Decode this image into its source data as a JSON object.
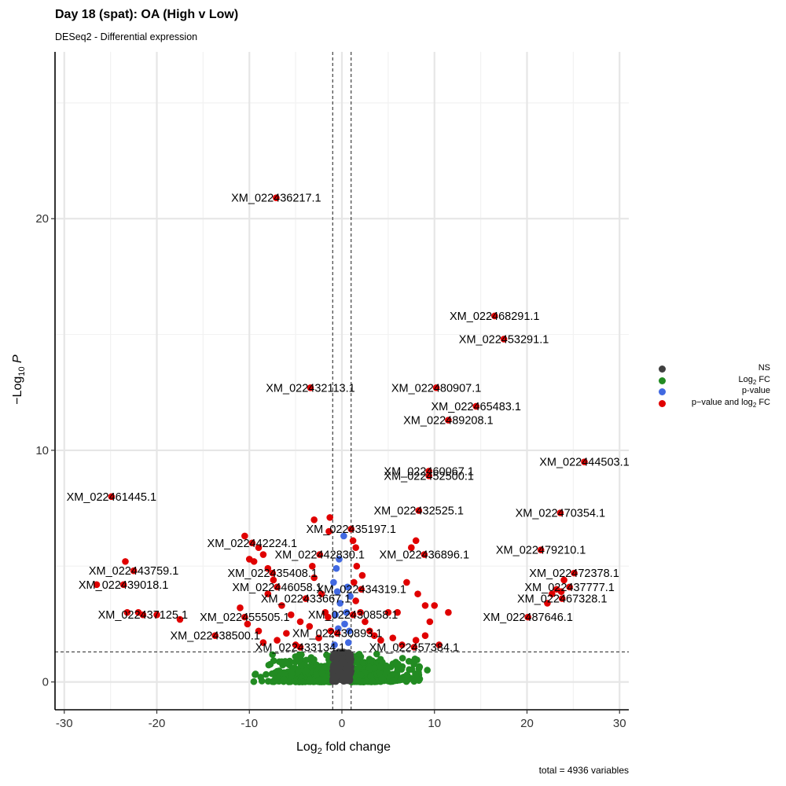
{
  "chart_data": {
    "type": "scatter",
    "title": "Day 18 (spat): OA (High v Low)",
    "subtitle": "DESeq2 - Differential expression",
    "xlabel": "Log2 fold change",
    "ylabel": "−Log10 P",
    "caption": "total = 4936 variables",
    "xlim": [
      -31,
      31
    ],
    "ylim": [
      -1.2,
      27.2
    ],
    "xticks": [
      -30,
      -20,
      -10,
      0,
      10,
      20,
      30
    ],
    "yticks": [
      0,
      10,
      20
    ],
    "grid": true,
    "cutoffs": {
      "log2fc": [
        -1,
        1
      ],
      "neglog10p": 1.3
    },
    "legend": {
      "placement": "right",
      "items": [
        {
          "label": "NS",
          "color": "#404040"
        },
        {
          "label": "Log2 FC",
          "color": "#228b22"
        },
        {
          "label": "p-value",
          "color": "#4169e1"
        },
        {
          "label": "p−value and log2 FC",
          "color": "#e00000"
        }
      ]
    },
    "labeled_points": [
      {
        "label": "XM_022436217.1",
        "x": -7.1,
        "y": 20.9
      },
      {
        "label": "XM_022468291.1",
        "x": 16.5,
        "y": 15.8
      },
      {
        "label": "XM_022453291.1",
        "x": 17.5,
        "y": 14.8
      },
      {
        "label": "XM_022432113.1",
        "x": -3.4,
        "y": 12.7
      },
      {
        "label": "XM_022480907.1",
        "x": 10.2,
        "y": 12.7
      },
      {
        "label": "XM_022465483.1",
        "x": 14.5,
        "y": 11.9
      },
      {
        "label": "XM_022489208.1",
        "x": 11.5,
        "y": 11.3
      },
      {
        "label": "XM_022444503.1",
        "x": 26.2,
        "y": 9.5
      },
      {
        "label": "XM_022460067.1",
        "x": 9.4,
        "y": 9.1
      },
      {
        "label": "XM_022452500.1",
        "x": 9.4,
        "y": 8.9
      },
      {
        "label": "XM_022461445.1",
        "x": -24.9,
        "y": 8.0
      },
      {
        "label": "XM_022432525.1",
        "x": 8.3,
        "y": 7.4
      },
      {
        "label": "XM_022470354.1",
        "x": 23.6,
        "y": 7.3
      },
      {
        "label": "XM_022435197.1",
        "x": 1.0,
        "y": 6.6
      },
      {
        "label": "XM_022442224.1",
        "x": -9.7,
        "y": 6.0
      },
      {
        "label": "XM_022479210.1",
        "x": 21.5,
        "y": 5.7
      },
      {
        "label": "XM_022436896.1",
        "x": 8.9,
        "y": 5.5
      },
      {
        "label": "XM_022442830.1",
        "x": -2.4,
        "y": 5.5
      },
      {
        "label": "XM_022443759.1",
        "x": -22.5,
        "y": 4.8
      },
      {
        "label": "XM_022435408.1",
        "x": -7.5,
        "y": 4.7
      },
      {
        "label": "XM_022472378.1",
        "x": 25.1,
        "y": 4.7
      },
      {
        "label": "XM_022439018.1",
        "x": -23.6,
        "y": 4.2
      },
      {
        "label": "XM_022446058.1",
        "x": -7.0,
        "y": 4.1
      },
      {
        "label": "XM_022434319.1",
        "x": 2.1,
        "y": 4.0
      },
      {
        "label": "XM_022437777.1",
        "x": 24.6,
        "y": 4.1
      },
      {
        "label": "XM_022433667.1",
        "x": -3.9,
        "y": 3.6
      },
      {
        "label": "XM_022467328.1",
        "x": 23.8,
        "y": 3.6
      },
      {
        "label": "XM_022437125.1",
        "x": -21.5,
        "y": 2.9
      },
      {
        "label": "XM_022455505.1",
        "x": -10.5,
        "y": 2.8
      },
      {
        "label": "XM_022430858.1",
        "x": 1.2,
        "y": 2.9
      },
      {
        "label": "XM_022487646.1",
        "x": 20.1,
        "y": 2.8
      },
      {
        "label": "XM_022438500.1",
        "x": -13.7,
        "y": 2.0
      },
      {
        "label": "XM_022430893.1",
        "x": -0.5,
        "y": 2.1
      },
      {
        "label": "XM_022433134.1",
        "x": -4.5,
        "y": 1.5
      },
      {
        "label": "XM_022457384.1",
        "x": 7.8,
        "y": 1.5
      }
    ],
    "extra_significant_points": [
      {
        "x": -26.5,
        "y": 4.2
      },
      {
        "x": -23.2,
        "y": 3.0
      },
      {
        "x": -22.0,
        "y": 3.0
      },
      {
        "x": -20.0,
        "y": 2.9
      },
      {
        "x": -17.5,
        "y": 2.7
      },
      {
        "x": -23.4,
        "y": 5.2
      },
      {
        "x": -10.5,
        "y": 6.3
      },
      {
        "x": -9.5,
        "y": 5.2
      },
      {
        "x": -10.0,
        "y": 5.3
      },
      {
        "x": -9.0,
        "y": 5.8
      },
      {
        "x": -8.5,
        "y": 5.5
      },
      {
        "x": -8.0,
        "y": 4.9
      },
      {
        "x": -11.0,
        "y": 3.2
      },
      {
        "x": -10.2,
        "y": 2.5
      },
      {
        "x": -9.0,
        "y": 2.2
      },
      {
        "x": -8.0,
        "y": 3.8
      },
      {
        "x": -7.4,
        "y": 4.4
      },
      {
        "x": -6.5,
        "y": 3.3
      },
      {
        "x": -5.5,
        "y": 2.9
      },
      {
        "x": -4.5,
        "y": 2.6
      },
      {
        "x": -3.5,
        "y": 2.4
      },
      {
        "x": -3.2,
        "y": 5.0
      },
      {
        "x": -3.0,
        "y": 7.0
      },
      {
        "x": -3.0,
        "y": 4.5
      },
      {
        "x": -2.2,
        "y": 3.8
      },
      {
        "x": -1.8,
        "y": 3.0
      },
      {
        "x": -1.5,
        "y": 2.8
      },
      {
        "x": -1.2,
        "y": 2.2
      },
      {
        "x": -1.3,
        "y": 7.1
      },
      {
        "x": -1.4,
        "y": 6.5
      },
      {
        "x": -6.0,
        "y": 2.1
      },
      {
        "x": -7.0,
        "y": 1.8
      },
      {
        "x": -5.0,
        "y": 1.6
      },
      {
        "x": -8.5,
        "y": 1.7
      },
      {
        "x": -2.5,
        "y": 1.9
      },
      {
        "x": 1.5,
        "y": 5.8
      },
      {
        "x": 1.6,
        "y": 5.0
      },
      {
        "x": 1.3,
        "y": 4.3
      },
      {
        "x": 1.5,
        "y": 3.5
      },
      {
        "x": 2.0,
        "y": 3.0
      },
      {
        "x": 2.5,
        "y": 2.6
      },
      {
        "x": 3.0,
        "y": 2.2
      },
      {
        "x": 3.5,
        "y": 2.0
      },
      {
        "x": 4.2,
        "y": 1.8
      },
      {
        "x": 5.0,
        "y": 3.0
      },
      {
        "x": 6.0,
        "y": 3.0
      },
      {
        "x": 7.0,
        "y": 4.3
      },
      {
        "x": 7.5,
        "y": 5.8
      },
      {
        "x": 8.0,
        "y": 6.1
      },
      {
        "x": 8.2,
        "y": 3.8
      },
      {
        "x": 9.0,
        "y": 3.3
      },
      {
        "x": 9.5,
        "y": 2.6
      },
      {
        "x": 9.0,
        "y": 2.0
      },
      {
        "x": 10.0,
        "y": 3.3
      },
      {
        "x": 11.5,
        "y": 3.0
      },
      {
        "x": 8.0,
        "y": 1.8
      },
      {
        "x": 5.5,
        "y": 1.9
      },
      {
        "x": 6.5,
        "y": 1.6
      },
      {
        "x": 10.5,
        "y": 1.6
      },
      {
        "x": 2.2,
        "y": 4.6
      },
      {
        "x": 1.2,
        "y": 6.1
      },
      {
        "x": 22.2,
        "y": 3.4
      },
      {
        "x": 22.7,
        "y": 3.8
      },
      {
        "x": 23.2,
        "y": 4.0
      },
      {
        "x": 24.0,
        "y": 4.4
      },
      {
        "x": 23.7,
        "y": 3.9
      }
    ],
    "pvalue_only_points": [
      {
        "x": -0.5,
        "y": 3.9
      },
      {
        "x": -0.6,
        "y": 4.9
      },
      {
        "x": -0.3,
        "y": 5.3
      },
      {
        "x": 0.5,
        "y": 3.0
      },
      {
        "x": 0.6,
        "y": 4.1
      },
      {
        "x": 0.8,
        "y": 2.2
      },
      {
        "x": -0.7,
        "y": 2.9
      },
      {
        "x": 0.3,
        "y": 2.5
      },
      {
        "x": -0.4,
        "y": 2.3
      },
      {
        "x": 0.7,
        "y": 1.7
      },
      {
        "x": -0.8,
        "y": 1.6
      },
      {
        "x": 0.2,
        "y": 6.3
      },
      {
        "x": -0.2,
        "y": 3.4
      },
      {
        "x": 0.9,
        "y": 3.7
      },
      {
        "x": -0.9,
        "y": 4.3
      }
    ],
    "ns_band": {
      "x_range": [
        -1,
        1
      ],
      "y_range": [
        0,
        1.3
      ],
      "count": 180
    },
    "log2fc_band": {
      "x_range": [
        -11,
        11
      ],
      "y_range": [
        0,
        1.3
      ],
      "count": 900
    }
  }
}
